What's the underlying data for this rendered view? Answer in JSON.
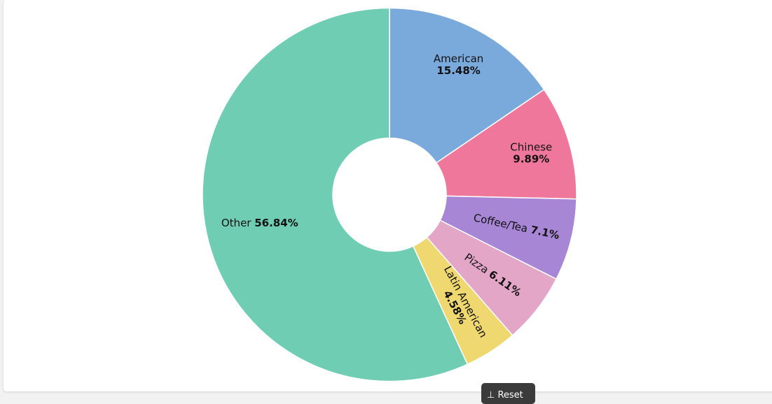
{
  "chart_data": {
    "type": "pie",
    "donut": true,
    "categories": [
      "American",
      "Chinese",
      "Coffee/Tea",
      "Pizza",
      "Latin American",
      "Other"
    ],
    "values": [
      15.48,
      9.89,
      7.1,
      6.11,
      4.58,
      56.84
    ],
    "value_labels": [
      "15.48%",
      "9.89%",
      "7.1%",
      "6.11%",
      "4.58%",
      "56.84%"
    ],
    "colors": [
      "#7aaadb",
      "#ef779c",
      "#a886d6",
      "#e3a6c7",
      "#f0d870",
      "#6fcdb3"
    ],
    "start_angle_deg": 0,
    "direction": "clockwise"
  },
  "bottom_tab": {
    "label": "⊥ Reset"
  }
}
